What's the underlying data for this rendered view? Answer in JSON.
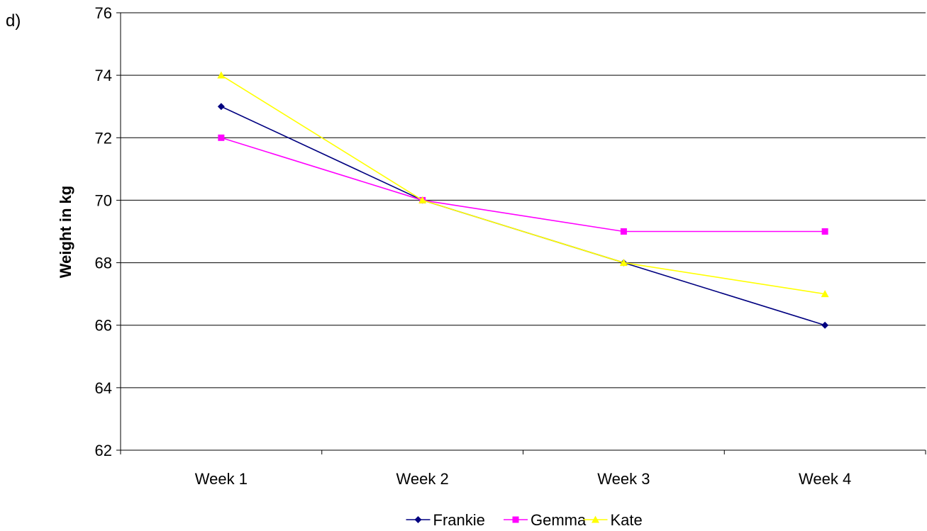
{
  "part_label": "d)",
  "chart_data": {
    "type": "line",
    "title": "",
    "xlabel": "",
    "ylabel": "Weight in kg",
    "categories": [
      "Week 1",
      "Week 2",
      "Week 3",
      "Week 4"
    ],
    "ylim": [
      62,
      76
    ],
    "yticks": [
      62,
      64,
      66,
      68,
      70,
      72,
      74,
      76
    ],
    "grid": true,
    "legend_position": "bottom",
    "series": [
      {
        "name": "Frankie",
        "values": [
          73,
          70,
          68,
          66
        ],
        "color": "#000080",
        "marker": "diamond"
      },
      {
        "name": "Gemma",
        "values": [
          72,
          70,
          69,
          69
        ],
        "color": "#ff00ff",
        "marker": "square"
      },
      {
        "name": "Kate",
        "values": [
          74,
          70,
          68,
          67
        ],
        "color": "#ffff00",
        "marker": "triangle"
      }
    ]
  }
}
